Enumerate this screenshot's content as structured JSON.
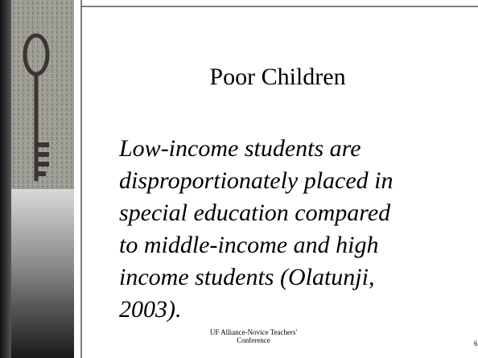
{
  "header": {
    "title": "Poor Children"
  },
  "body": {
    "lines": [
      "Low-income students are",
      "disproportionately placed in",
      "special education compared",
      "to middle-income and high",
      "income students (Olatunji,",
      "2003)."
    ]
  },
  "footer": {
    "lines": [
      "UF Alliance-Novice Teachers'",
      "Conference"
    ],
    "slide_number": "6"
  }
}
